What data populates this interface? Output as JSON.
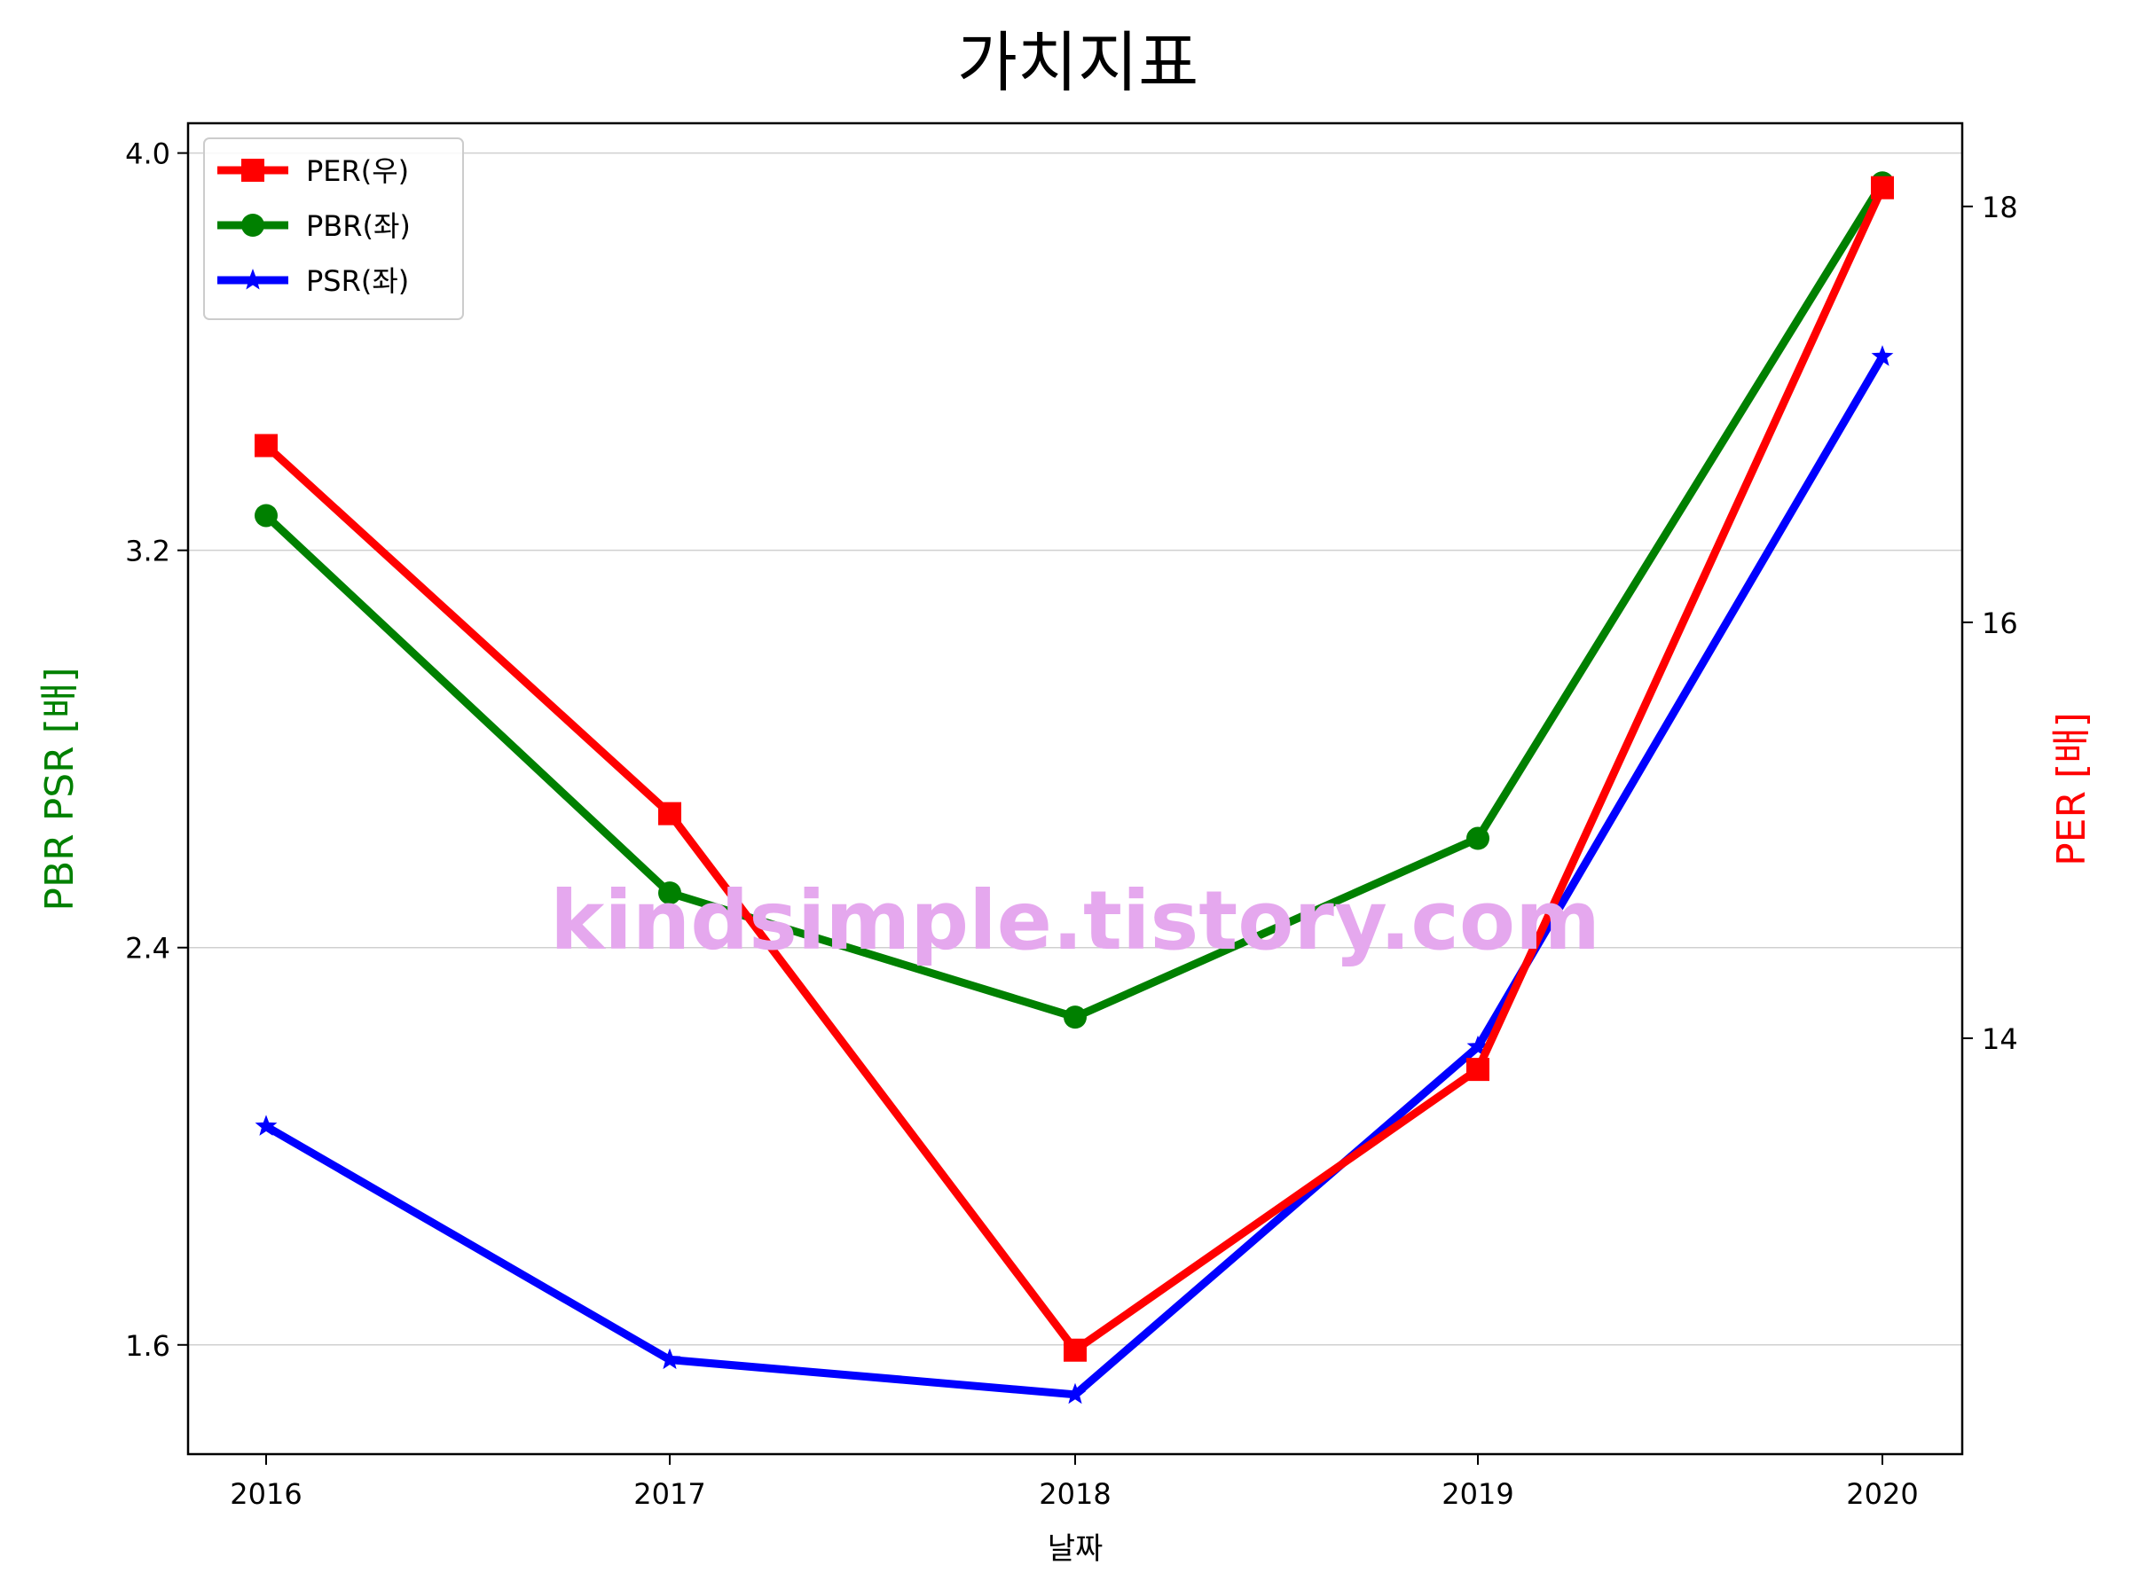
{
  "chart_data": {
    "type": "line",
    "title": "가치지표",
    "xlabel": "날짜",
    "ylabel_left": "PBR PSR [배]",
    "ylabel_right": "PER [배]",
    "categories": [
      "2016",
      "2017",
      "2018",
      "2019",
      "2020"
    ],
    "left_axis": {
      "ylim": [
        1.38,
        4.06
      ],
      "ticks": [
        "1.6",
        "2.4",
        "3.2",
        "4.0"
      ],
      "tick_values": [
        1.6,
        2.4,
        3.2,
        4.0
      ]
    },
    "right_axis": {
      "ylim": [
        12.0,
        18.4
      ],
      "ticks": [
        "14",
        "16",
        "18"
      ],
      "tick_values": [
        14,
        16,
        18
      ]
    },
    "grid": "horizontal (left axis)",
    "legend_position": "top-left",
    "series": [
      {
        "name": "PER(우)",
        "axis": "right",
        "color": "#ff0000",
        "marker": "square",
        "values": [
          16.85,
          15.08,
          12.5,
          13.85,
          18.09
        ]
      },
      {
        "name": "PBR(좌)",
        "axis": "left",
        "color": "#008000",
        "marker": "circle",
        "values": [
          3.27,
          2.51,
          2.26,
          2.62,
          3.94
        ]
      },
      {
        "name": "PSR(좌)",
        "axis": "left",
        "color": "#0000ff",
        "marker": "star",
        "values": [
          2.04,
          1.57,
          1.5,
          2.2,
          3.59
        ]
      }
    ],
    "watermark": "kindsimple.tistory.com",
    "colors": {
      "left_label": "#008000",
      "right_label": "#ff0000",
      "watermark": "#e5a8ee"
    }
  }
}
